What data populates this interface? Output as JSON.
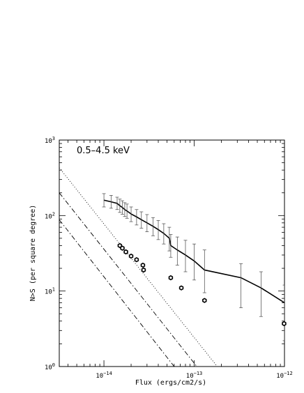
{
  "chart_data": {
    "type": "scatter",
    "title": "",
    "annotation": "0.5–4.5  keV",
    "xlabel": "Flux (ergs/cm2/s)",
    "ylabel": "N>S (per square degree)",
    "xscale": "log",
    "yscale": "log",
    "xlim": [
      3.2e-15,
      1e-12
    ],
    "ylim": [
      1,
      1000
    ],
    "grid": false,
    "x_tick_labels": [
      {
        "value": 1e-14,
        "base": "10",
        "exp": "−14"
      },
      {
        "value": 1e-13,
        "base": "10",
        "exp": "−13"
      },
      {
        "value": 1e-12,
        "base": "10",
        "exp": "−12"
      }
    ],
    "y_tick_labels": [
      {
        "value": 1,
        "base": "10",
        "exp": "0"
      },
      {
        "value": 10,
        "base": "10",
        "exp": "1"
      },
      {
        "value": 100,
        "base": "10",
        "exp": "2"
      },
      {
        "value": 1000,
        "base": "10",
        "exp": "3"
      }
    ],
    "series": [
      {
        "style": "solid-line-with-errorbars",
        "color": "#000000",
        "points": [
          {
            "x": 1e-14,
            "y": 160,
            "ylo": 130,
            "yhi": 195
          },
          {
            "x": 1.2e-14,
            "y": 152,
            "ylo": 125,
            "yhi": 185
          },
          {
            "x": 1.4e-14,
            "y": 145,
            "ylo": 120,
            "yhi": 175
          },
          {
            "x": 1.5e-14,
            "y": 135,
            "ylo": 110,
            "yhi": 165
          },
          {
            "x": 1.6e-14,
            "y": 128,
            "ylo": 104,
            "yhi": 157
          },
          {
            "x": 1.7e-14,
            "y": 120,
            "ylo": 97,
            "yhi": 148
          },
          {
            "x": 1.8e-14,
            "y": 115,
            "ylo": 92,
            "yhi": 142
          },
          {
            "x": 2e-14,
            "y": 105,
            "ylo": 83,
            "yhi": 130
          },
          {
            "x": 2.3e-14,
            "y": 96,
            "ylo": 75,
            "yhi": 120
          },
          {
            "x": 2.6e-14,
            "y": 88,
            "ylo": 68,
            "yhi": 112
          },
          {
            "x": 3e-14,
            "y": 80,
            "ylo": 61,
            "yhi": 103
          },
          {
            "x": 3.5e-14,
            "y": 72,
            "ylo": 54,
            "yhi": 94
          },
          {
            "x": 4e-14,
            "y": 65,
            "ylo": 48,
            "yhi": 86
          },
          {
            "x": 4.6e-14,
            "y": 58,
            "ylo": 42,
            "yhi": 78
          },
          {
            "x": 5.3e-14,
            "y": 50,
            "ylo": 34,
            "yhi": 70
          },
          {
            "x": 5.5e-14,
            "y": 40,
            "ylo": 28,
            "yhi": 56
          },
          {
            "x": 6.5e-14,
            "y": 35,
            "ylo": 22,
            "yhi": 52
          },
          {
            "x": 8e-14,
            "y": 30,
            "ylo": 18,
            "yhi": 47
          },
          {
            "x": 1e-13,
            "y": 25,
            "ylo": 14,
            "yhi": 42
          },
          {
            "x": 1.3e-13,
            "y": 19,
            "ylo": 9.5,
            "yhi": 35
          },
          {
            "x": 3.3e-13,
            "y": 15,
            "ylo": 6,
            "yhi": 23
          },
          {
            "x": 5.5e-13,
            "y": 11,
            "ylo": 4.6,
            "yhi": 18
          },
          {
            "x": 1e-12,
            "y": 7,
            "ylo": 2.2,
            "yhi": 12
          }
        ]
      },
      {
        "style": "open-hexagon-markers",
        "color": "#000000",
        "points": [
          {
            "x": 1.5e-14,
            "y": 40
          },
          {
            "x": 1.6e-14,
            "y": 37
          },
          {
            "x": 1.75e-14,
            "y": 33
          },
          {
            "x": 2e-14,
            "y": 29
          },
          {
            "x": 2.3e-14,
            "y": 26
          },
          {
            "x": 2.7e-14,
            "y": 22
          },
          {
            "x": 2.75e-14,
            "y": 19
          },
          {
            "x": 5.5e-14,
            "y": 15
          },
          {
            "x": 7.2e-14,
            "y": 11
          },
          {
            "x": 1.3e-13,
            "y": 7.5
          },
          {
            "x": 9.9e-13,
            "y": 3.7
          }
        ]
      },
      {
        "style": "dotted-line",
        "color": "#000000",
        "points": [
          {
            "x": 3.2e-15,
            "y": 430
          },
          {
            "x": 1.8e-13,
            "y": 1
          }
        ]
      },
      {
        "style": "dash-dot-line",
        "color": "#000000",
        "points": [
          {
            "x": 3.2e-15,
            "y": 200
          },
          {
            "x": 1.07e-13,
            "y": 1
          }
        ]
      },
      {
        "style": "dash-dot-line",
        "color": "#000000",
        "points": [
          {
            "x": 3.2e-15,
            "y": 88
          },
          {
            "x": 6e-14,
            "y": 1
          }
        ]
      }
    ]
  }
}
